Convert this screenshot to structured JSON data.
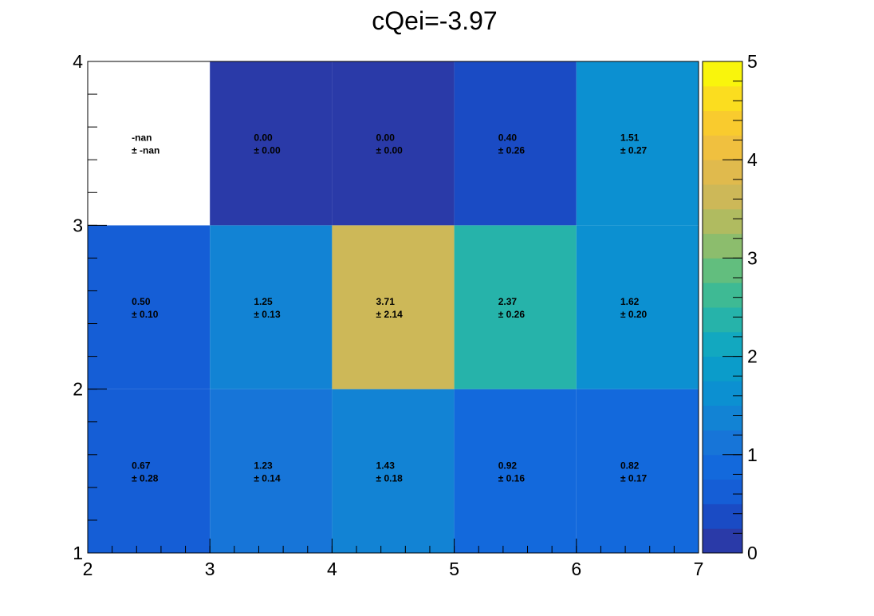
{
  "chart_data": {
    "type": "heatmap",
    "title": "cQei=-3.97",
    "xlabel": "",
    "ylabel": "",
    "x_edges": [
      2,
      3,
      4,
      5,
      6,
      7
    ],
    "y_edges": [
      1,
      2,
      3,
      4
    ],
    "x_tick_labels": [
      "2",
      "3",
      "4",
      "5",
      "6",
      "7"
    ],
    "y_tick_labels": [
      "1",
      "2",
      "3",
      "4"
    ],
    "xlim": [
      2,
      7
    ],
    "ylim": [
      1,
      4
    ],
    "zlim": [
      0,
      5
    ],
    "colorbar_tick_labels": [
      "0",
      "1",
      "2",
      "3",
      "4",
      "5"
    ],
    "grid": false,
    "cells": [
      {
        "x": 2.5,
        "y": 1.5,
        "value": 0.67,
        "value_label": "0.67",
        "error_label": "± 0.28"
      },
      {
        "x": 3.5,
        "y": 1.5,
        "value": 1.23,
        "value_label": "1.23",
        "error_label": "± 0.14"
      },
      {
        "x": 4.5,
        "y": 1.5,
        "value": 1.43,
        "value_label": "1.43",
        "error_label": "± 0.18"
      },
      {
        "x": 5.5,
        "y": 1.5,
        "value": 0.92,
        "value_label": "0.92",
        "error_label": "± 0.16"
      },
      {
        "x": 6.5,
        "y": 1.5,
        "value": 0.82,
        "value_label": "0.82",
        "error_label": "± 0.17"
      },
      {
        "x": 2.5,
        "y": 2.5,
        "value": 0.5,
        "value_label": "0.50",
        "error_label": "± 0.10"
      },
      {
        "x": 3.5,
        "y": 2.5,
        "value": 1.25,
        "value_label": "1.25",
        "error_label": "± 0.13"
      },
      {
        "x": 4.5,
        "y": 2.5,
        "value": 3.71,
        "value_label": "3.71",
        "error_label": "± 2.14"
      },
      {
        "x": 5.5,
        "y": 2.5,
        "value": 2.37,
        "value_label": "2.37",
        "error_label": "± 0.26"
      },
      {
        "x": 6.5,
        "y": 2.5,
        "value": 1.62,
        "value_label": "1.62",
        "error_label": "± 0.20"
      },
      {
        "x": 2.5,
        "y": 3.5,
        "value": null,
        "value_label": "-nan",
        "error_label": "± -nan"
      },
      {
        "x": 3.5,
        "y": 3.5,
        "value": 0.0,
        "value_label": "0.00",
        "error_label": "± 0.00"
      },
      {
        "x": 4.5,
        "y": 3.5,
        "value": 0.0,
        "value_label": "0.00",
        "error_label": "± 0.00"
      },
      {
        "x": 5.5,
        "y": 3.5,
        "value": 0.4,
        "value_label": "0.40",
        "error_label": "± 0.26"
      },
      {
        "x": 6.5,
        "y": 3.5,
        "value": 1.51,
        "value_label": "1.51",
        "error_label": "± 0.27"
      }
    ],
    "palette": [
      "#2a3aa8",
      "#1a4bc4",
      "#155ed6",
      "#1369dc",
      "#1775d8",
      "#1283d4",
      "#0c90d1",
      "#0b9cca",
      "#12a8c0",
      "#26b3aa",
      "#3eba94",
      "#62be7e",
      "#8cbd6d",
      "#b0bb60",
      "#cdb858",
      "#e0ba4d",
      "#f0c03f",
      "#f9cb2e",
      "#fbdd1f",
      "#f9f50c"
    ],
    "nan_color": "#ffffff"
  }
}
